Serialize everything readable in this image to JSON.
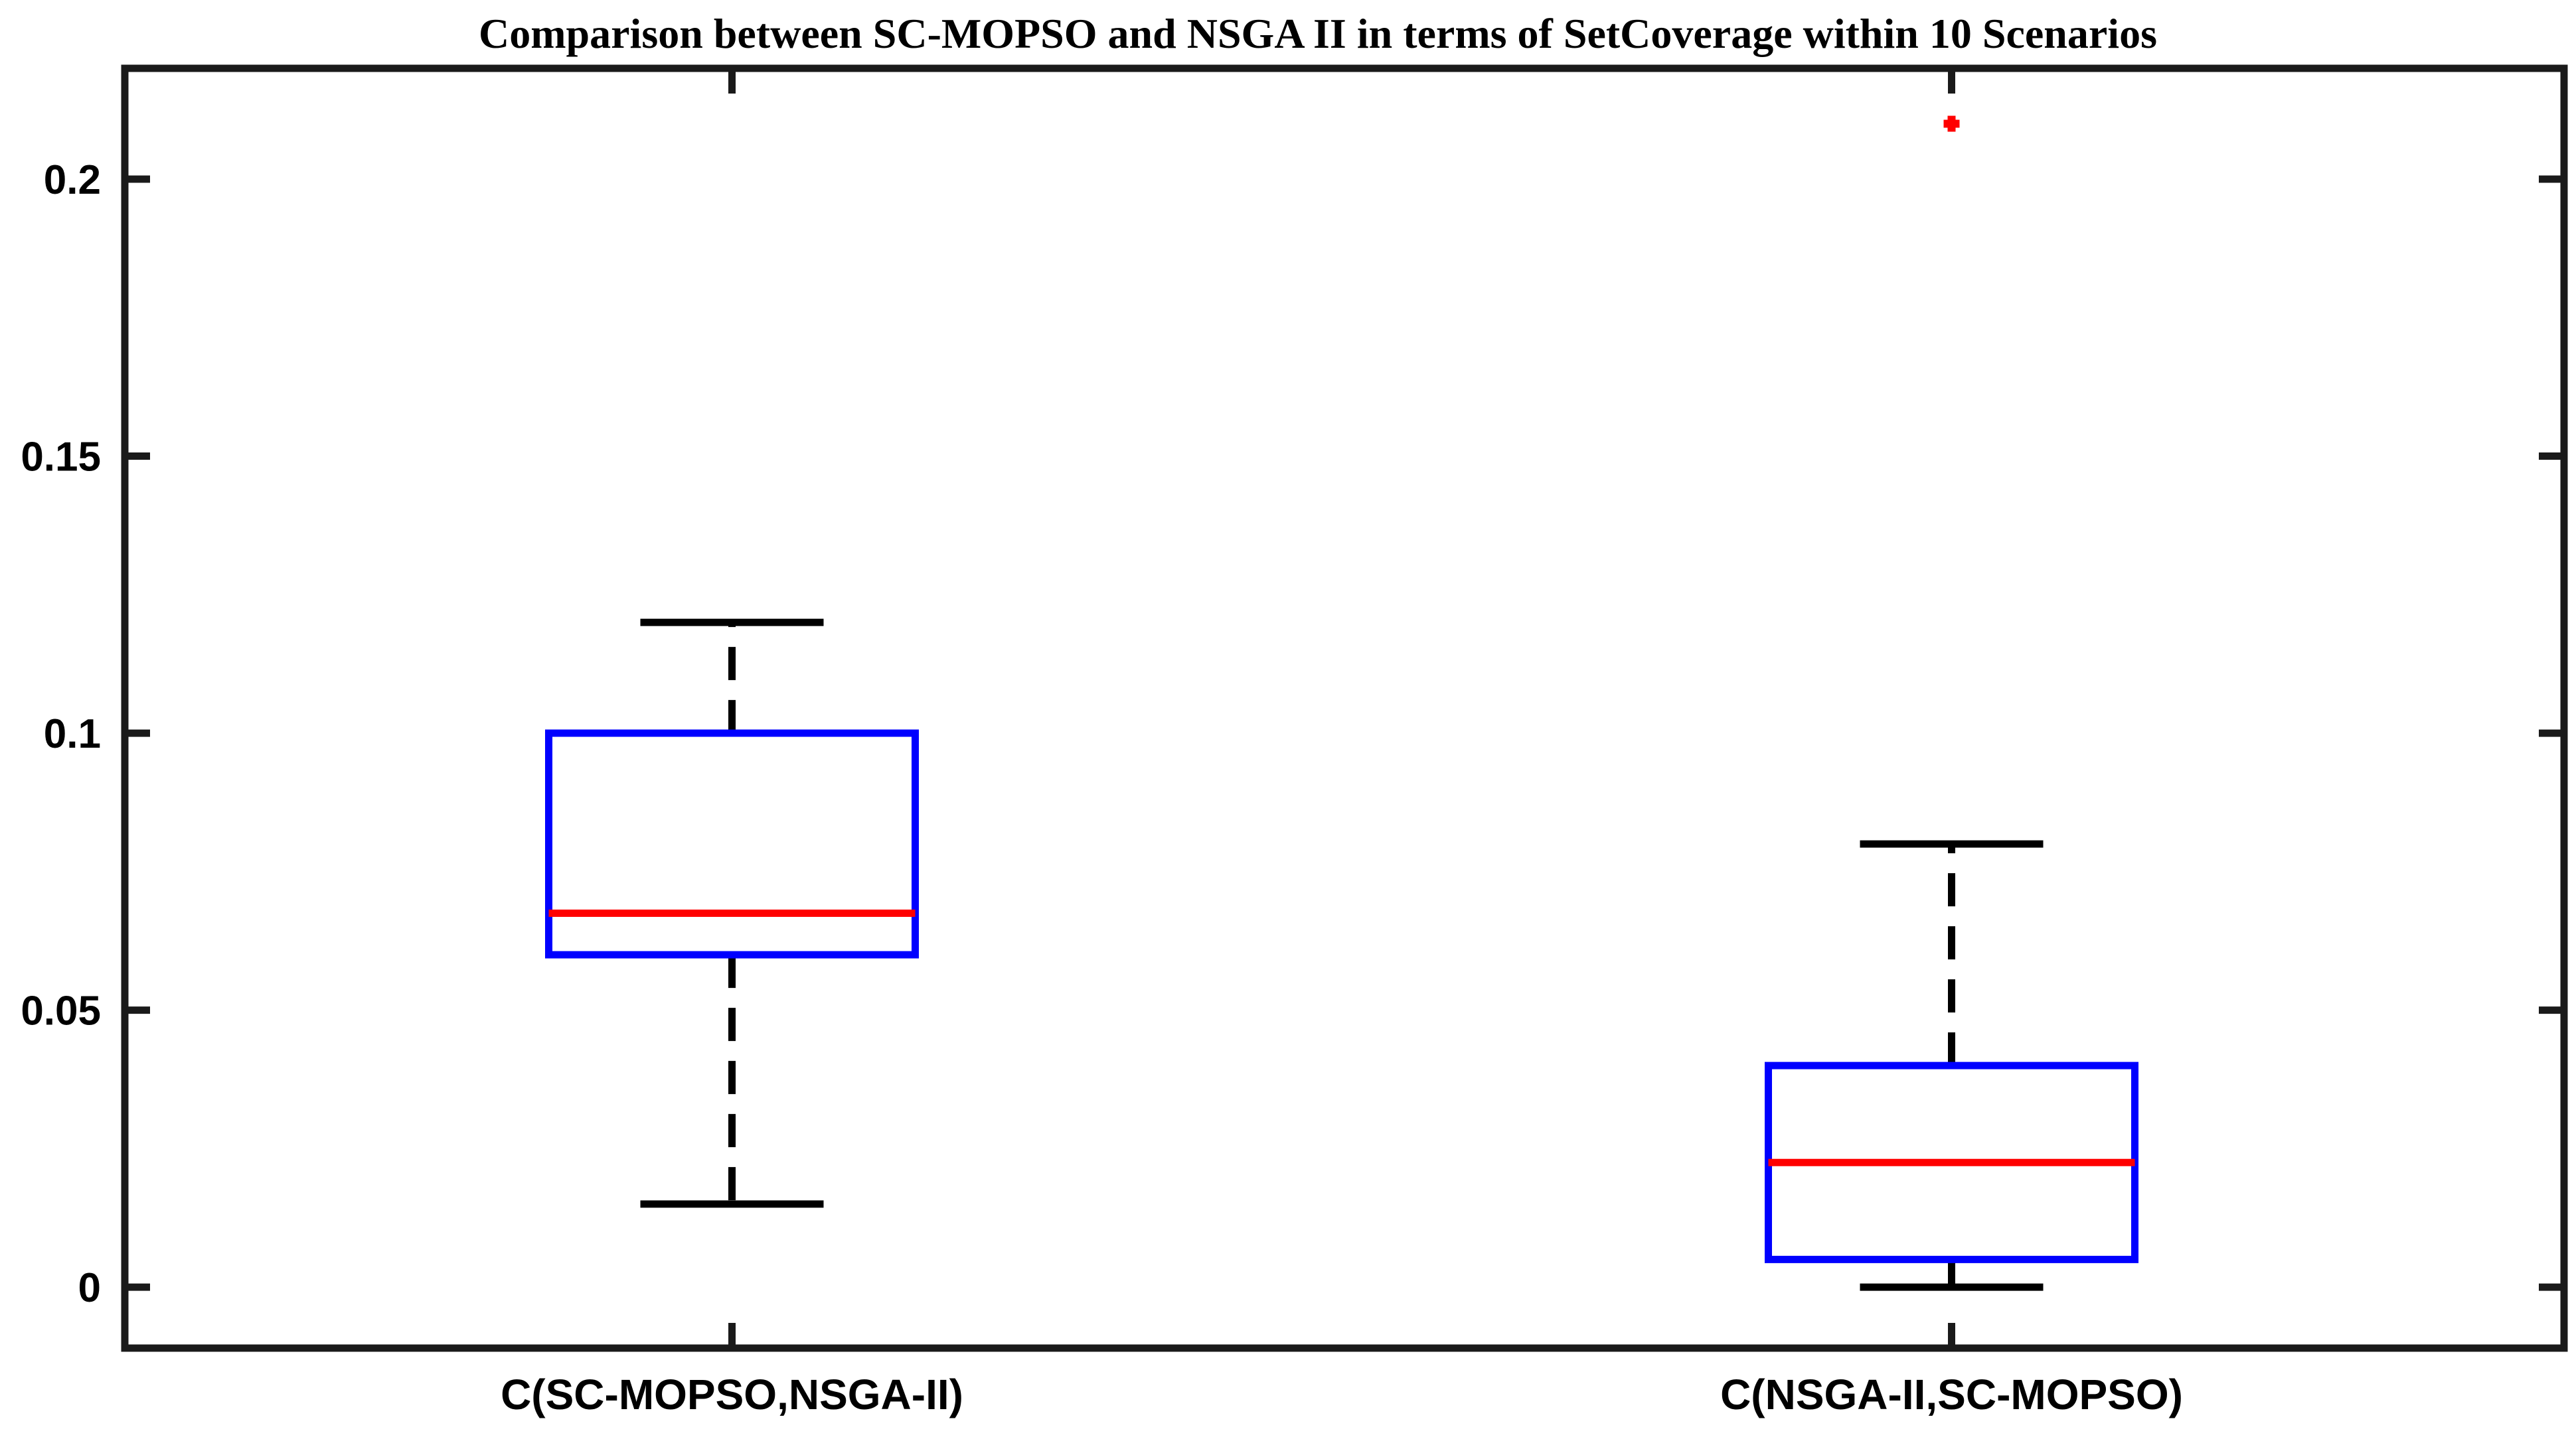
{
  "chart_data": {
    "type": "boxplot",
    "title": "Comparison between SC-MOPSO and NSGA II in terms of SetCoverage within 10 Scenarios",
    "xlabel": "",
    "ylabel": "",
    "ylim": [
      -0.011,
      0.22
    ],
    "yticks": [
      0,
      0.05,
      0.1,
      0.15,
      0.2
    ],
    "ytick_labels": [
      "0",
      "0.05",
      "0.1",
      "0.15",
      "0.2"
    ],
    "categories": [
      "C(SC-MOPSO,NSGA-II)",
      "C(NSGA-II,SC-MOPSO)"
    ],
    "boxes": [
      {
        "name": "C(SC-MOPSO,NSGA-II)",
        "whisker_low": 0.015,
        "q1": 0.06,
        "median": 0.0675,
        "q3": 0.1,
        "whisker_high": 0.12,
        "outliers": []
      },
      {
        "name": "C(NSGA-II,SC-MOPSO)",
        "whisker_low": 0.0,
        "q1": 0.005,
        "median": 0.0225,
        "q3": 0.04,
        "whisker_high": 0.08,
        "outliers": [
          0.21
        ]
      }
    ],
    "grid": false,
    "colors": {
      "box": "#0000ff",
      "median": "#ff0000",
      "whisker": "#000000",
      "outlier": "#ff0000",
      "axes": "#1a1a1a"
    }
  }
}
